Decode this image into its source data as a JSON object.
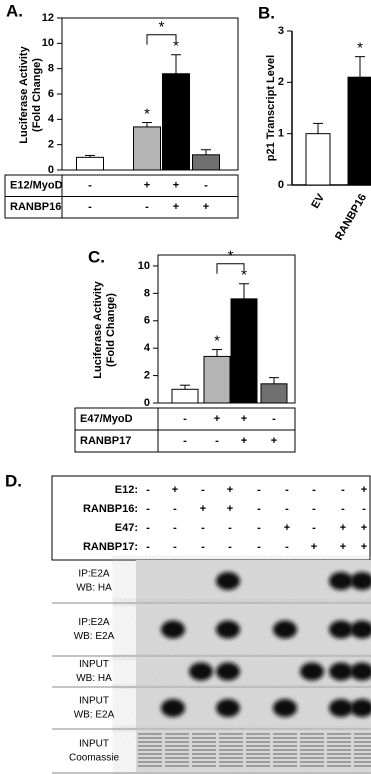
{
  "chart_data": [
    {
      "type": "bar",
      "panel_label": "A.",
      "ylabel": [
        "Luciferase Activity",
        "(Fold Change)"
      ],
      "values": [
        1.0,
        3.4,
        7.6,
        1.2
      ],
      "errors": [
        0.15,
        0.35,
        1.5,
        0.4
      ],
      "colors": [
        "#ffffff",
        "#b4b4b4",
        "#000000",
        "#707070"
      ],
      "ylim": [
        0,
        12
      ],
      "yticks": [
        0,
        2,
        4,
        6,
        8,
        10,
        12
      ],
      "bar_annotations": [
        null,
        "*",
        "*",
        null
      ],
      "bracket_label": "*",
      "conditions": [
        {
          "name": "E12/MyoD",
          "values": [
            "-",
            "+",
            "+",
            "-"
          ]
        },
        {
          "name": "RANBP16",
          "values": [
            "-",
            "-",
            "+",
            "+"
          ]
        }
      ]
    },
    {
      "type": "bar",
      "panel_label": "B.",
      "ylabel": [
        "p21 Transcript Level"
      ],
      "categories": [
        "EV",
        "RANBP16"
      ],
      "values": [
        1.0,
        2.1
      ],
      "errors": [
        0.2,
        0.4
      ],
      "colors": [
        "#ffffff",
        "#000000"
      ],
      "ylim": [
        0,
        3
      ],
      "yticks": [
        0,
        1,
        2,
        3
      ],
      "bar_annotations": [
        null,
        "*"
      ]
    },
    {
      "type": "bar",
      "panel_label": "C.",
      "ylabel": [
        "Luciferase Activity",
        "(Fold Change)"
      ],
      "values": [
        1.0,
        3.4,
        7.6,
        1.4
      ],
      "errors": [
        0.3,
        0.5,
        1.1,
        0.45
      ],
      "colors": [
        "#ffffff",
        "#b4b4b4",
        "#000000",
        "#707070"
      ],
      "ylim": [
        0,
        10.8
      ],
      "yticks": [
        0,
        2,
        4,
        6,
        8,
        10
      ],
      "bar_annotations": [
        null,
        "*",
        "*",
        null
      ],
      "bracket_label": "*",
      "conditions": [
        {
          "name": "E47/MyoD",
          "values": [
            "-",
            "+",
            "+",
            "-"
          ]
        },
        {
          "name": "RANBP17",
          "values": [
            "-",
            "-",
            "+",
            "+"
          ]
        }
      ]
    }
  ],
  "panel_d": {
    "panel_label": "D.",
    "rows": [
      {
        "name": "E12:",
        "values": [
          "-",
          "+",
          "-",
          "+",
          "-",
          "-",
          "-",
          "-",
          "+"
        ]
      },
      {
        "name": "RANBP16:",
        "values": [
          "-",
          "-",
          "+",
          "+",
          "-",
          "-",
          "-",
          "-",
          "-"
        ]
      },
      {
        "name": "E47:",
        "values": [
          "-",
          "-",
          "-",
          "-",
          "-",
          "+",
          "-",
          "+",
          "+"
        ]
      },
      {
        "name": "RANBP17:",
        "values": [
          "-",
          "-",
          "-",
          "-",
          "-",
          "-",
          "+",
          "+",
          "+"
        ]
      }
    ],
    "blots": [
      [
        "IP:E2A",
        "WB: HA"
      ],
      [
        "IP:E2A",
        "WB: E2A"
      ],
      [
        "INPUT",
        "WB: HA"
      ],
      [
        "INPUT",
        "WB: E2A"
      ],
      [
        "INPUT",
        "Coomassie"
      ]
    ]
  }
}
